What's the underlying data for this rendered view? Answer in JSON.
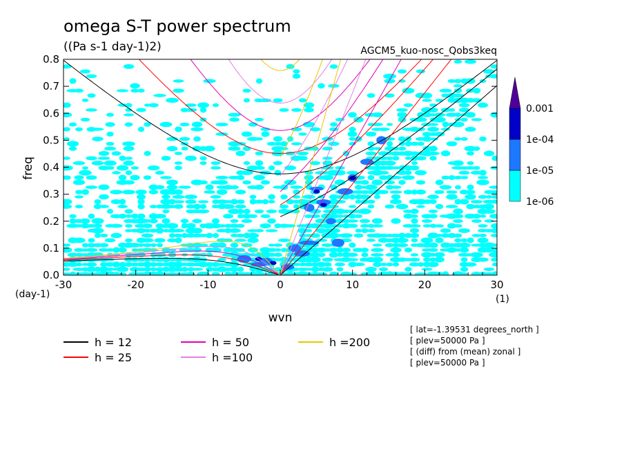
{
  "chart_data": {
    "type": "heatmap",
    "title": "omega S-T power spectrum",
    "subtitle": "((Pa s-1 day-1)2)",
    "run_label": "AGCM5_kuo-nosc_Qobs3keq",
    "xlabel": "wvn",
    "ylabel": "freq",
    "x_unit": "(1)",
    "y_unit": "(day-1)",
    "xlim": [
      -30,
      30
    ],
    "ylim": [
      0,
      0.8
    ],
    "x_ticks": [
      -30,
      -20,
      -10,
      0,
      10,
      20,
      30
    ],
    "x_tick_labels": [
      "-30",
      "-20",
      "-10",
      "0",
      "10",
      "20",
      "30"
    ],
    "y_ticks": [
      0,
      0.1,
      0.2,
      0.3,
      0.4,
      0.5,
      0.6,
      0.7,
      0.8
    ],
    "y_tick_labels": [
      "0.0",
      "0.1",
      "0.2",
      "0.3",
      "0.4",
      "0.5",
      "0.6",
      "0.7",
      "0.8"
    ],
    "colorbar": {
      "levels": [
        {
          "label": "1e-06",
          "color": "#00ffff"
        },
        {
          "label": "1e-05",
          "color": "#1e78ff"
        },
        {
          "label": "1e-04",
          "color": "#0000c8"
        },
        {
          "label": "0.001",
          "color": "#50009a"
        }
      ],
      "shaded_min": "1e-06"
    },
    "dispersion_curves": [
      {
        "h": 12,
        "label": "h = 12",
        "color": "#000000"
      },
      {
        "h": 25,
        "label": "h = 25",
        "color": "#ff0000"
      },
      {
        "h": 50,
        "label": "h = 50",
        "color": "#e000b4"
      },
      {
        "h": 100,
        "label": "h =100",
        "color": "#e080e0"
      },
      {
        "h": 200,
        "label": "h =200",
        "color": "#e6c800"
      }
    ],
    "annotations": [
      "[ lat=-1.39531 degrees_north ]",
      "[ plev=50000 Pa ]",
      "[ (diff) from (mean) zonal ]",
      "[ plev=50000 Pa ]"
    ]
  }
}
